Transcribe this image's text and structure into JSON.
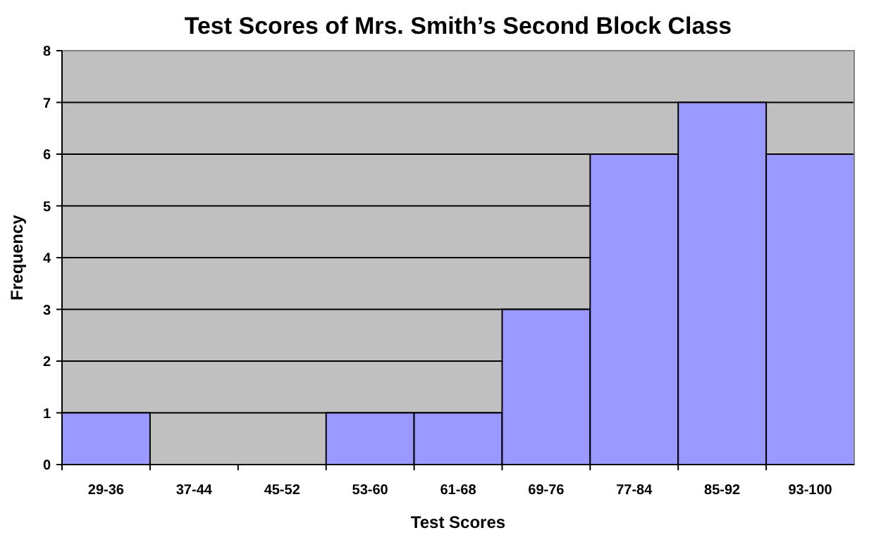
{
  "chart_data": {
    "type": "bar",
    "title": "Test Scores of Mrs. Smith’s Second Block Class",
    "xlabel": "Test Scores",
    "ylabel": "Frequency",
    "categories": [
      "29-36",
      "37-44",
      "45-52",
      "53-60",
      "61-68",
      "69-76",
      "77-84",
      "85-92",
      "93-100"
    ],
    "values": [
      1,
      0,
      0,
      1,
      1,
      3,
      6,
      7,
      6
    ],
    "color": "#9999ff",
    "ylim": [
      0,
      8
    ],
    "yticks": [
      0,
      1,
      2,
      3,
      4,
      5,
      6,
      7,
      8
    ],
    "grid": "y"
  }
}
